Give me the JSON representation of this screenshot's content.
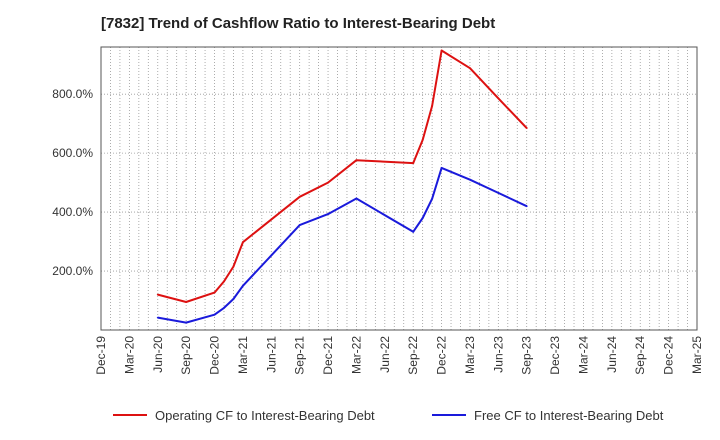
{
  "title": "[7832]  Trend of Cashflow Ratio to Interest-Bearing Debt",
  "chart_data": {
    "type": "line",
    "title": "[7832]  Trend of Cashflow Ratio to Interest-Bearing Debt",
    "xlabel": "",
    "ylabel": "",
    "x_categories": [
      "Dec-19",
      "Mar-20",
      "Jun-20",
      "Sep-20",
      "Dec-20",
      "Mar-21",
      "Jun-21",
      "Sep-21",
      "Dec-21",
      "Mar-22",
      "Jun-22",
      "Sep-22",
      "Dec-22",
      "Mar-23",
      "Jun-23",
      "Sep-23",
      "Dec-23",
      "Mar-24",
      "Jun-24",
      "Sep-24",
      "Dec-24",
      "Mar-25"
    ],
    "y_ticks": [
      200,
      400,
      600,
      800
    ],
    "y_tick_labels": [
      "200.0%",
      "400.0%",
      "600.0%",
      "800.0%"
    ],
    "ylim": [
      0,
      960
    ],
    "y_unit": "%",
    "grid": "dotted vertical and horizontal",
    "legend_position": "bottom",
    "series": [
      {
        "name": "Operating CF to Interest-Bearing Debt",
        "color": "#dd1111",
        "points": [
          [
            "Jun-20",
            120
          ],
          [
            "Sep-20",
            95
          ],
          [
            "Dec-20",
            127
          ],
          [
            "Jan-21",
            165
          ],
          [
            "Feb-21",
            215
          ],
          [
            "Mar-21",
            298
          ],
          [
            "Sep-21",
            452
          ],
          [
            "Dec-21",
            500
          ],
          [
            "Mar-22",
            576
          ],
          [
            "Sep-22",
            566
          ],
          [
            "Oct-22",
            645
          ],
          [
            "Nov-22",
            760
          ],
          [
            "Dec-22",
            948
          ],
          [
            "Mar-23",
            888
          ],
          [
            "Jun-23",
            786
          ],
          [
            "Sep-23",
            685
          ]
        ]
      },
      {
        "name": "Free CF to Interest-Bearing Debt",
        "color": "#1a1adb",
        "points": [
          [
            "Jun-20",
            42
          ],
          [
            "Sep-20",
            25
          ],
          [
            "Dec-20",
            52
          ],
          [
            "Jan-21",
            75
          ],
          [
            "Feb-21",
            105
          ],
          [
            "Mar-21",
            150
          ],
          [
            "Sep-21",
            356
          ],
          [
            "Dec-21",
            393
          ],
          [
            "Mar-22",
            446
          ],
          [
            "Sep-22",
            333
          ],
          [
            "Oct-22",
            380
          ],
          [
            "Nov-22",
            445
          ],
          [
            "Dec-22",
            550
          ],
          [
            "Mar-23",
            510
          ],
          [
            "Jun-23",
            465
          ],
          [
            "Sep-23",
            420
          ]
        ]
      }
    ]
  }
}
